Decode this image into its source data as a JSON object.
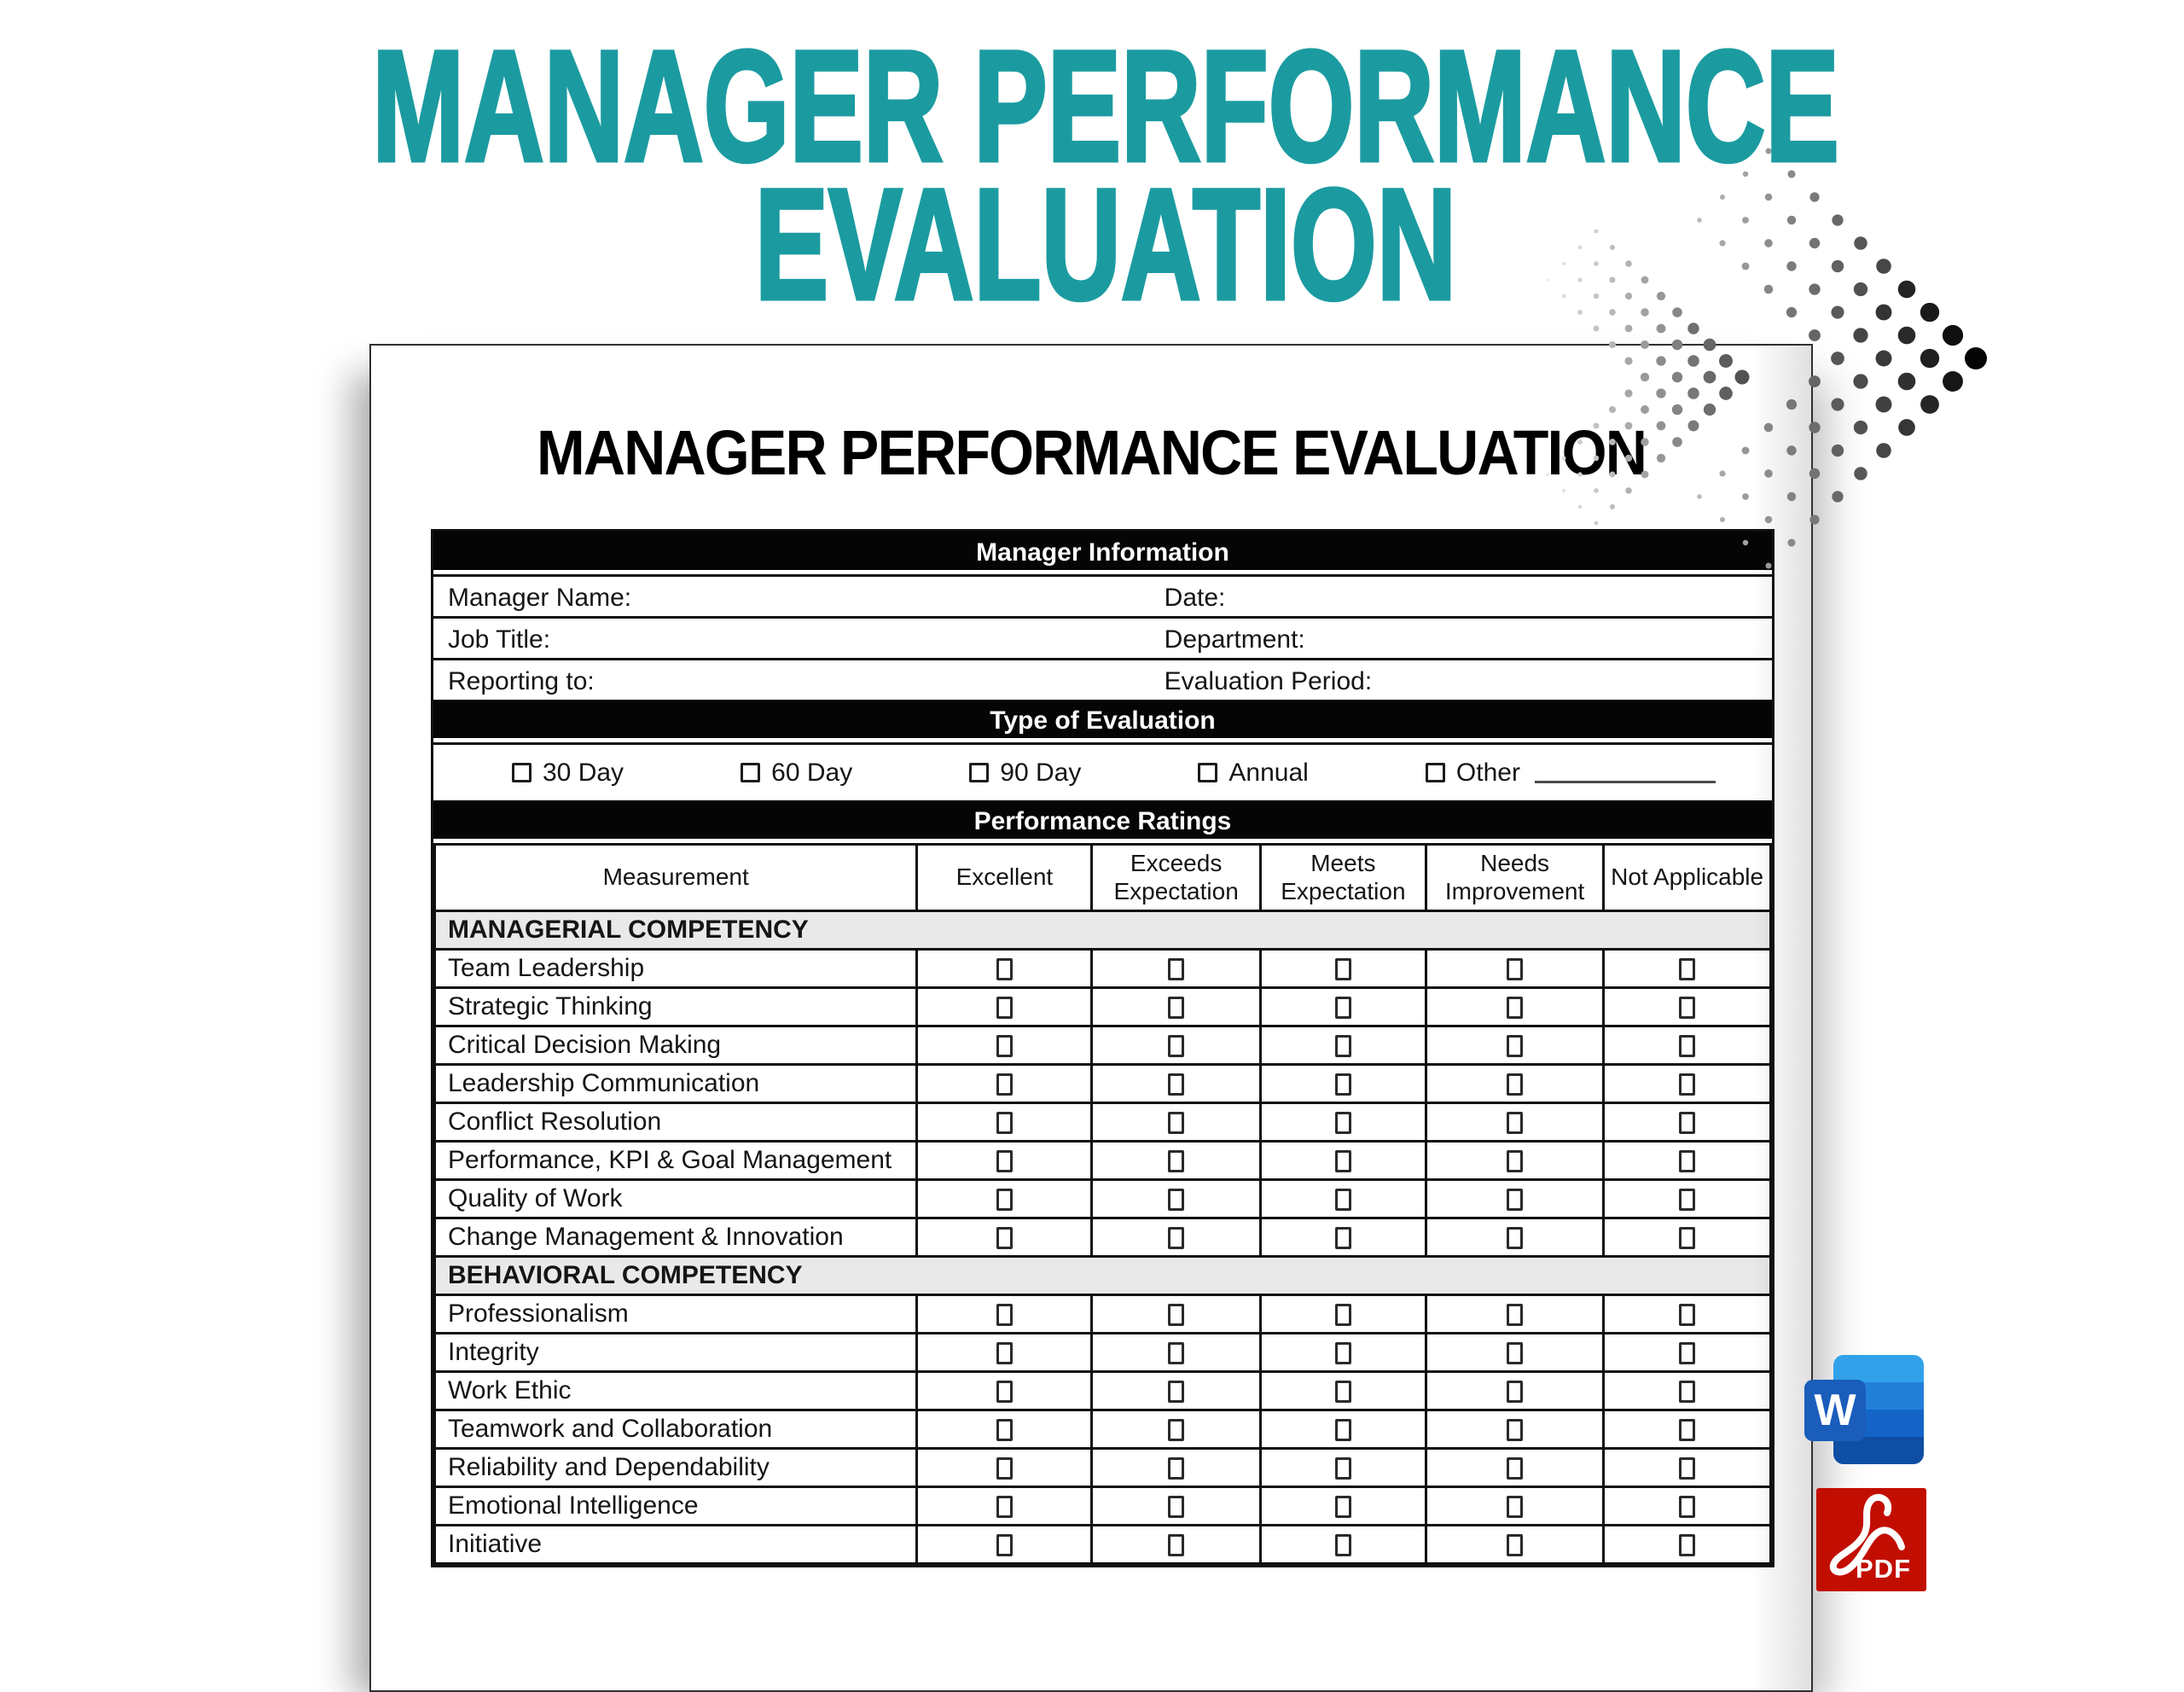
{
  "hero": {
    "title_line1": "MANAGER PERFORMANCE",
    "title_line2": "EVALUATION"
  },
  "theme": {
    "accent": "#1b9ba0",
    "bar_bg": "#050505",
    "group_row_bg": "#e9e9e9",
    "word_tile": "#1a5dbb",
    "word_band_1": "#31a2ea",
    "word_band_2": "#2380d8",
    "word_band_3": "#1464c8",
    "word_band_4": "#0e4fa4",
    "pdf_red": "#c20e00"
  },
  "document": {
    "title": "MANAGER PERFORMANCE EVALUATION",
    "sections": {
      "manager_information": {
        "header": "Manager Information",
        "fields": [
          {
            "left": "Manager Name:",
            "right": "Date:"
          },
          {
            "left": "Job Title:",
            "right": "Department:"
          },
          {
            "left": "Reporting to:",
            "right": "Evaluation Period:"
          }
        ]
      },
      "type_of_evaluation": {
        "header": "Type of Evaluation",
        "options": [
          {
            "label": "30 Day"
          },
          {
            "label": "60 Day"
          },
          {
            "label": "90 Day"
          },
          {
            "label": "Annual"
          },
          {
            "label": "Other",
            "fill_line": true
          }
        ]
      },
      "performance_ratings": {
        "header": "Performance Ratings",
        "columns": [
          "Measurement",
          "Excellent",
          "Exceeds Expectation",
          "Meets Expectation",
          "Needs Improvement",
          "Not Applicable"
        ],
        "groups": [
          {
            "title": "MANAGERIAL COMPETENCY",
            "rows": [
              "Team Leadership",
              "Strategic Thinking",
              "Critical Decision Making",
              "Leadership Communication",
              "Conflict Resolution",
              "Performance, KPI & Goal Management",
              "Quality of Work",
              "Change Management & Innovation"
            ]
          },
          {
            "title": "BEHAVIORAL COMPETENCY",
            "rows": [
              "Professionalism",
              "Integrity",
              "Work Ethic",
              "Teamwork and Collaboration",
              "Reliability and Dependability",
              "Emotional Intelligence",
              "Initiative"
            ]
          }
        ]
      }
    }
  },
  "badges": {
    "word_label": "W",
    "pdf_label": "PDF"
  },
  "decor": {
    "arrow_icon": "halftone-arrow"
  }
}
